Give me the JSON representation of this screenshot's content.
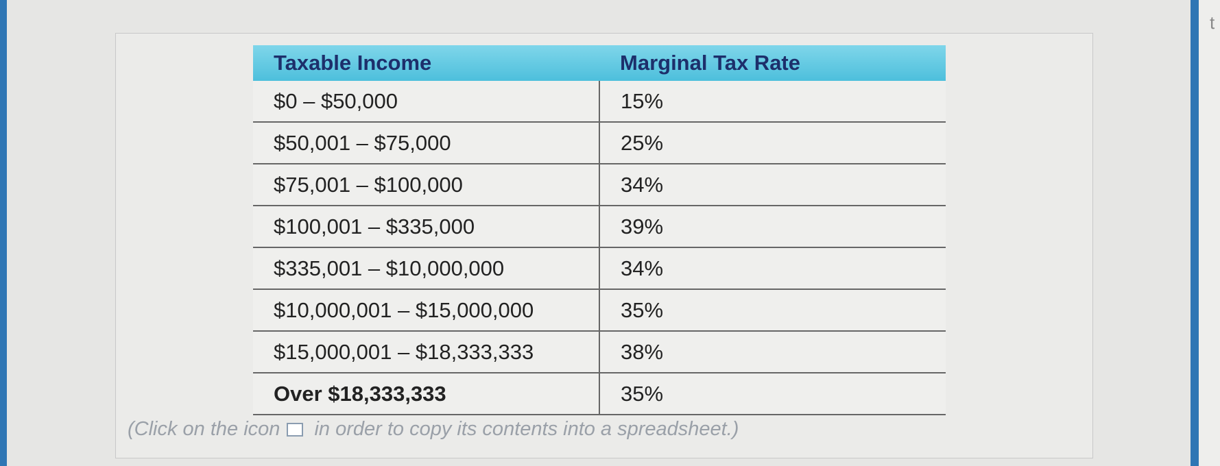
{
  "table": {
    "header": [
      "Taxable Income",
      "Marginal Tax Rate"
    ],
    "rows": [
      [
        "$0 – $50,000",
        "15%"
      ],
      [
        "$50,001 – $75,000",
        "25%"
      ],
      [
        "$75,001 – $100,000",
        "34%"
      ],
      [
        "$100,001 – $335,000",
        "39%"
      ],
      [
        "$335,001 – $10,000,000",
        "34%"
      ],
      [
        "$10,000,001 – $15,000,000",
        "35%"
      ],
      [
        "$15,000,001 – $18,333,333",
        "38%"
      ],
      [
        "Over $18,333,333",
        "35%"
      ]
    ]
  },
  "note": {
    "before": "(Click on the icon",
    "after": "in order to copy its contents into a spreadsheet.)"
  },
  "corner": "t"
}
